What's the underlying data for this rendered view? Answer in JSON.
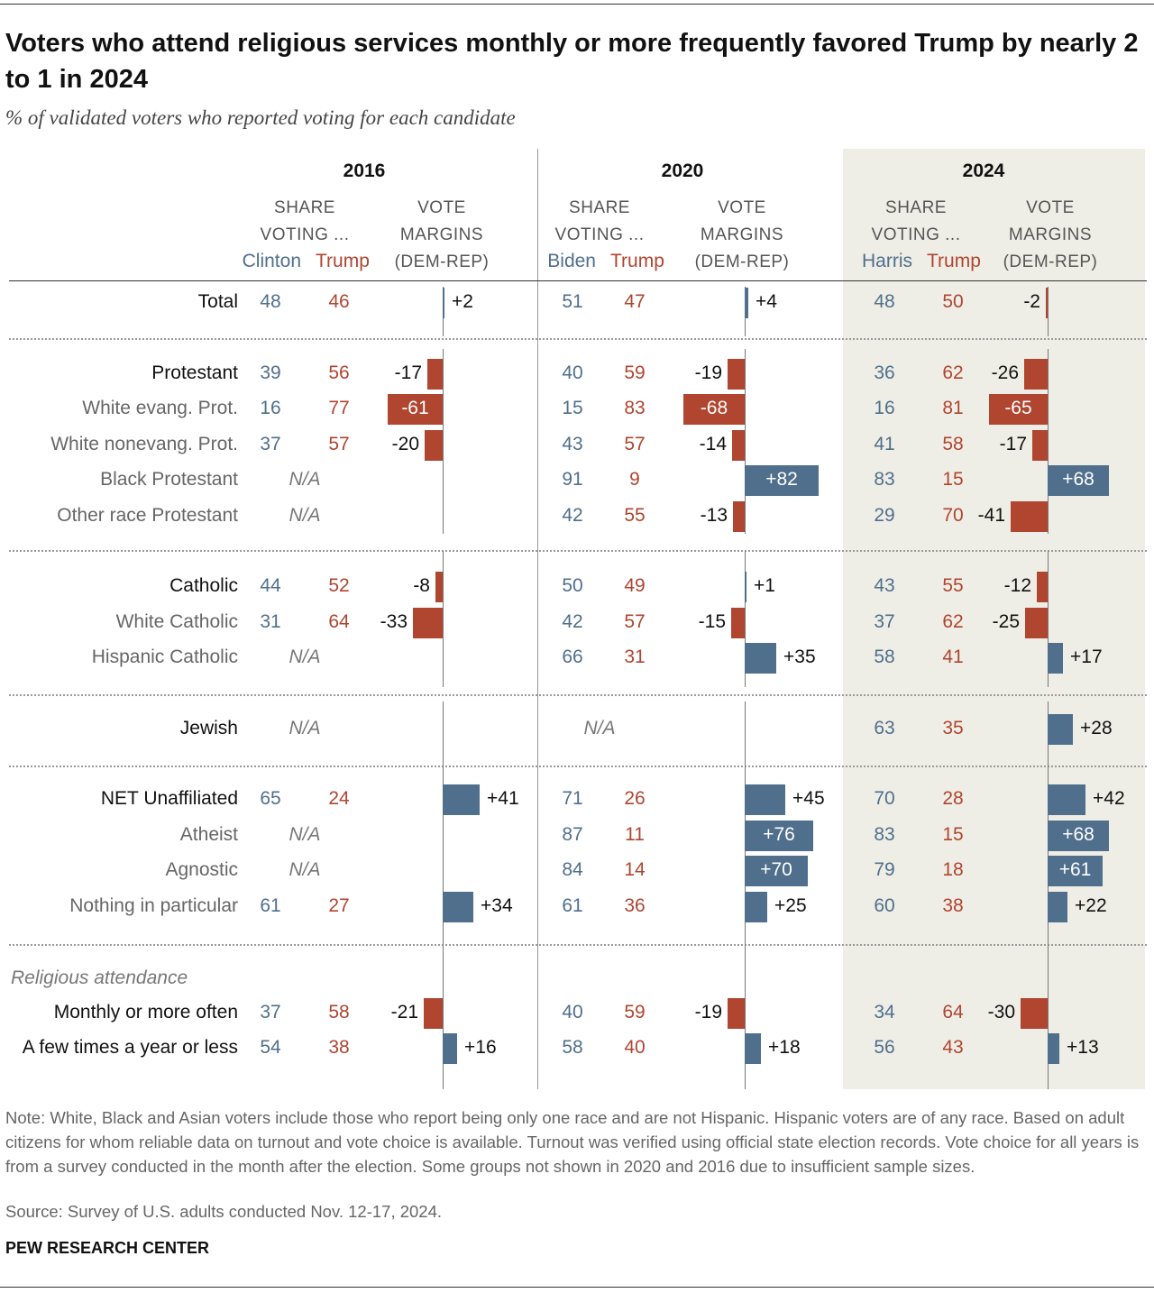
{
  "title": "Voters who attend religious services monthly or more frequently favored Trump by nearly 2 to 1 in 2024",
  "subtitle": "% of validated voters who reported voting for each candidate",
  "headers": {
    "share": "SHARE",
    "voting": "VOTING ...",
    "vote": "VOTE",
    "margins": "MARGINS",
    "demrep": "(DEM-REP)",
    "na": "N/A"
  },
  "colors": {
    "dem": "#4f6f8c",
    "rep": "#b04530",
    "shade": "#efeee6"
  },
  "chart_data": {
    "type": "table",
    "years": [
      {
        "year": "2016",
        "dem": "Clinton",
        "rep": "Trump"
      },
      {
        "year": "2020",
        "dem": "Biden",
        "rep": "Trump"
      },
      {
        "year": "2024",
        "dem": "Harris",
        "rep": "Trump"
      }
    ],
    "section_label": "Religious attendance",
    "rows": [
      {
        "label": "Total",
        "main": true,
        "vals": [
          [
            48,
            46,
            "+2"
          ],
          [
            51,
            47,
            "+4"
          ],
          [
            48,
            50,
            "-2"
          ]
        ]
      },
      {
        "label": "Protestant",
        "main": true,
        "vals": [
          [
            39,
            56,
            "-17"
          ],
          [
            40,
            59,
            "-19"
          ],
          [
            36,
            62,
            "-26"
          ]
        ]
      },
      {
        "label": "White evang. Prot.",
        "main": false,
        "vals": [
          [
            16,
            77,
            "-61"
          ],
          [
            15,
            83,
            "-68"
          ],
          [
            16,
            81,
            "-65"
          ]
        ]
      },
      {
        "label": "White nonevang. Prot.",
        "main": false,
        "vals": [
          [
            37,
            57,
            "-20"
          ],
          [
            43,
            57,
            "-14"
          ],
          [
            41,
            58,
            "-17"
          ]
        ]
      },
      {
        "label": "Black Protestant",
        "main": false,
        "vals": [
          null,
          [
            91,
            9,
            "+82"
          ],
          [
            83,
            15,
            "+68"
          ]
        ]
      },
      {
        "label": "Other race Protestant",
        "main": false,
        "vals": [
          null,
          [
            42,
            55,
            "-13"
          ],
          [
            29,
            70,
            "-41"
          ]
        ]
      },
      {
        "label": "Catholic",
        "main": true,
        "vals": [
          [
            44,
            52,
            "-8"
          ],
          [
            50,
            49,
            "+1"
          ],
          [
            43,
            55,
            "-12"
          ]
        ]
      },
      {
        "label": "White Catholic",
        "main": false,
        "vals": [
          [
            31,
            64,
            "-33"
          ],
          [
            42,
            57,
            "-15"
          ],
          [
            37,
            62,
            "-25"
          ]
        ]
      },
      {
        "label": "Hispanic Catholic",
        "main": false,
        "vals": [
          null,
          [
            66,
            31,
            "+35"
          ],
          [
            58,
            41,
            "+17"
          ]
        ]
      },
      {
        "label": "Jewish",
        "main": true,
        "vals": [
          null,
          null,
          [
            63,
            35,
            "+28"
          ]
        ]
      },
      {
        "label": "NET Unaffiliated",
        "main": true,
        "vals": [
          [
            65,
            24,
            "+41"
          ],
          [
            71,
            26,
            "+45"
          ],
          [
            70,
            28,
            "+42"
          ]
        ]
      },
      {
        "label": "Atheist",
        "main": false,
        "vals": [
          null,
          [
            87,
            11,
            "+76"
          ],
          [
            83,
            15,
            "+68"
          ]
        ]
      },
      {
        "label": "Agnostic",
        "main": false,
        "vals": [
          null,
          [
            84,
            14,
            "+70"
          ],
          [
            79,
            18,
            "+61"
          ]
        ]
      },
      {
        "label": "Nothing in particular",
        "main": false,
        "vals": [
          [
            61,
            27,
            "+34"
          ],
          [
            61,
            36,
            "+25"
          ],
          [
            60,
            38,
            "+22"
          ]
        ]
      },
      {
        "label": "Monthly or more often",
        "main": true,
        "vals": [
          [
            37,
            58,
            "-21"
          ],
          [
            40,
            59,
            "-19"
          ],
          [
            34,
            64,
            "-30"
          ]
        ]
      },
      {
        "label": "A few times a year or less",
        "main": true,
        "vals": [
          [
            54,
            38,
            "+16"
          ],
          [
            58,
            40,
            "+18"
          ],
          [
            56,
            43,
            "+13"
          ]
        ]
      }
    ]
  },
  "note": "Note: White, Black and Asian voters include those who report being only one race and are not Hispanic. Hispanic voters are of any race. Based on adult citizens for whom reliable data on turnout and vote choice is available. Turnout was verified using official state election records. Vote choice for all years is from a survey conducted in the month after the election. Some groups not shown in 2020 and 2016 due to insufficient sample sizes.",
  "source": "Source: Survey of U.S. adults conducted Nov. 12-17, 2024.",
  "logo": "PEW RESEARCH CENTER"
}
